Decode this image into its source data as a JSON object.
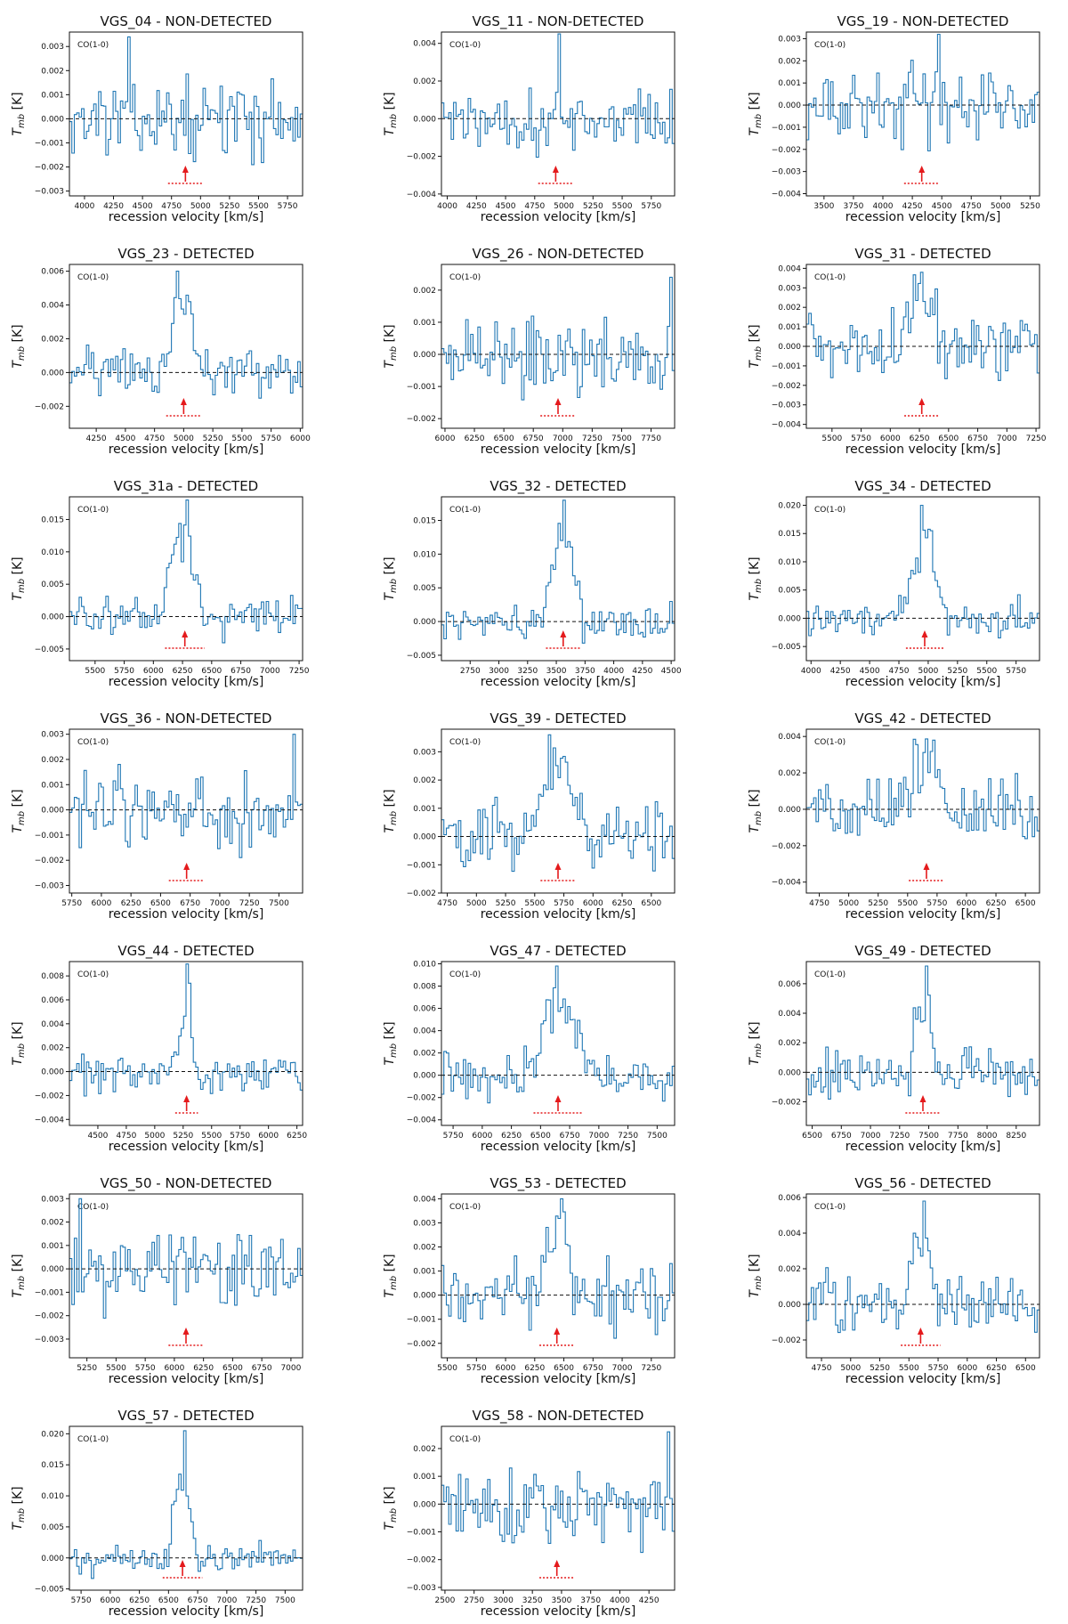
{
  "figure": {
    "ylabel_main": "T",
    "ylabel_sub": "mb",
    "ylabel_unit": " [K]"
  },
  "chart_data": [
    {
      "type": "line",
      "title": "VGS_04 - NON-DETECTED",
      "xlabel": "recession velocity [km/s]",
      "ylabel": "T_mb [K]",
      "annotation": "CO(1-0)",
      "xlim": [
        3870,
        5880
      ],
      "ylim": [
        -0.0032,
        0.0036
      ],
      "xticks": [
        4000,
        4250,
        4500,
        4750,
        5000,
        5250,
        5500,
        5750
      ],
      "yticks": [
        -0.003,
        -0.002,
        -0.001,
        0.0,
        0.001,
        0.002,
        0.003
      ],
      "ytick_labels": [
        "−0.003",
        "−0.002",
        "−0.001",
        "0.000",
        "0.001",
        "0.002",
        "0.003"
      ],
      "peak": 0.0034,
      "line_center": 4870,
      "line_width": 300,
      "noise": 0.0011,
      "baseline_x": 5000,
      "x_start": 4000,
      "arrow_v": 4870,
      "arrow_w": 300,
      "show_line": false
    },
    {
      "type": "line",
      "title": "VGS_11 - NON-DETECTED",
      "xlabel": "recession velocity [km/s]",
      "ylabel": "T_mb [K]",
      "annotation": "CO(1-0)",
      "xlim": [
        3950,
        5950
      ],
      "ylim": [
        -0.0041,
        0.0046
      ],
      "xticks": [
        4000,
        4250,
        4500,
        4750,
        5000,
        5250,
        5500,
        5750
      ],
      "yticks": [
        -0.004,
        -0.002,
        0.0,
        0.002,
        0.004
      ],
      "ytick_labels": [
        "−0.004",
        "−0.002",
        "0.000",
        "0.002",
        "0.004"
      ],
      "peak": 0.0045,
      "line_center": 4930,
      "line_width": 300,
      "noise": 0.0013,
      "baseline_x": 5000,
      "x_start": 4000,
      "arrow_v": 4930,
      "arrow_w": 300,
      "show_line": false
    },
    {
      "type": "line",
      "title": "VGS_19 - NON-DETECTED",
      "xlabel": "recession velocity [km/s]",
      "ylabel": "T_mb [K]",
      "annotation": "CO(1-0)",
      "xlim": [
        3350,
        5330
      ],
      "ylim": [
        -0.0041,
        0.0033
      ],
      "xticks": [
        3500,
        3750,
        4000,
        4250,
        4500,
        4750,
        5000,
        5250
      ],
      "yticks": [
        -0.004,
        -0.003,
        -0.002,
        -0.001,
        0.0,
        0.001,
        0.002,
        0.003
      ],
      "ytick_labels": [
        "−0.004",
        "−0.003",
        "−0.002",
        "−0.001",
        "0.000",
        "0.001",
        "0.002",
        "0.003"
      ],
      "peak": 0.0032,
      "line_center": 4330,
      "line_width": 300,
      "noise": 0.0012,
      "baseline_x": 5000,
      "x_start": 3500,
      "arrow_v": 4330,
      "arrow_w": 300,
      "show_line": false
    },
    {
      "type": "line",
      "title": "VGS_23 - DETECTED",
      "xlabel": "recession velocity [km/s]",
      "ylabel": "T_mb [K]",
      "annotation": "CO(1-0)",
      "xlim": [
        4020,
        6020
      ],
      "ylim": [
        -0.0033,
        0.0064
      ],
      "xticks": [
        4250,
        4500,
        4750,
        5000,
        5250,
        5500,
        5750,
        6000
      ],
      "yticks": [
        -0.002,
        0.0,
        0.002,
        0.004,
        0.006
      ],
      "ytick_labels": [
        "−0.002",
        "0.000",
        "0.002",
        "0.004",
        "0.006"
      ],
      "peak": 0.006,
      "line_center": 5000,
      "line_width": 300,
      "noise": 0.0011,
      "baseline_x": 5000,
      "x_start": 4250,
      "arrow_v": 5000,
      "arrow_w": 300,
      "show_line": true
    },
    {
      "type": "line",
      "title": "VGS_26 - NON-DETECTED",
      "xlabel": "recession velocity [km/s]",
      "ylabel": "T_mb [K]",
      "annotation": "CO(1-0)",
      "xlim": [
        5970,
        7950
      ],
      "ylim": [
        -0.0023,
        0.0028
      ],
      "xticks": [
        6000,
        6250,
        6500,
        6750,
        7000,
        7250,
        7500,
        7750
      ],
      "yticks": [
        -0.002,
        -0.001,
        0.0,
        0.001,
        0.002
      ],
      "ytick_labels": [
        "−0.002",
        "−0.001",
        "0.000",
        "0.001",
        "0.002"
      ],
      "peak": 0.0024,
      "line_center": 6960,
      "line_width": 300,
      "noise": 0.0009,
      "baseline_x": 5000,
      "x_start": 6000,
      "arrow_v": 6960,
      "arrow_w": 300,
      "show_line": false
    },
    {
      "type": "line",
      "title": "VGS_31 - DETECTED",
      "xlabel": "recession velocity [km/s]",
      "ylabel": "T_mb [K]",
      "annotation": "CO(1-0)",
      "xlim": [
        5280,
        7280
      ],
      "ylim": [
        -0.0042,
        0.0042
      ],
      "xticks": [
        5500,
        5750,
        6000,
        6250,
        6500,
        6750,
        7000,
        7250
      ],
      "yticks": [
        -0.004,
        -0.003,
        -0.002,
        -0.001,
        0.0,
        0.001,
        0.002,
        0.003,
        0.004
      ],
      "ytick_labels": [
        "−0.004",
        "−0.003",
        "−0.002",
        "−0.001",
        "0.000",
        "0.001",
        "0.002",
        "0.003",
        "0.004"
      ],
      "peak": 0.0038,
      "line_center": 6270,
      "line_width": 300,
      "noise": 0.0012,
      "baseline_x": 5000,
      "x_start": 5500,
      "arrow_v": 6270,
      "arrow_w": 300,
      "show_line": true
    },
    {
      "type": "line",
      "title": "VGS_31a - DETECTED",
      "xlabel": "recession velocity [km/s]",
      "ylabel": "T_mb [K]",
      "annotation": "CO(1-0)",
      "xlim": [
        5280,
        7280
      ],
      "ylim": [
        -0.0068,
        0.0185
      ],
      "xticks": [
        5500,
        5750,
        6000,
        6250,
        6500,
        6750,
        7000,
        7250
      ],
      "yticks": [
        -0.005,
        0.0,
        0.005,
        0.01,
        0.015
      ],
      "ytick_labels": [
        "−0.005",
        "0.000",
        "0.005",
        "0.010",
        "0.015"
      ],
      "peak": 0.018,
      "line_center": 6250,
      "line_width": 300,
      "noise": 0.0022,
      "baseline_x": 5000,
      "x_start": 5500,
      "arrow_v": 6270,
      "arrow_w": 340,
      "show_line": true
    },
    {
      "type": "line",
      "title": "VGS_32 - DETECTED",
      "xlabel": "recession velocity [km/s]",
      "ylabel": "T_mb [K]",
      "annotation": "CO(1-0)",
      "xlim": [
        2500,
        4530
      ],
      "ylim": [
        -0.0058,
        0.0185
      ],
      "xticks": [
        2750,
        3000,
        3250,
        3500,
        3750,
        4000,
        4250,
        4500
      ],
      "yticks": [
        -0.005,
        0.0,
        0.005,
        0.01,
        0.015
      ],
      "ytick_labels": [
        "−0.005",
        "0.000",
        "0.005",
        "0.010",
        "0.015"
      ],
      "peak": 0.018,
      "line_center": 3560,
      "line_width": 300,
      "noise": 0.002,
      "baseline_x": 5000,
      "x_start": 2750,
      "arrow_v": 3560,
      "arrow_w": 300,
      "show_line": true
    },
    {
      "type": "line",
      "title": "VGS_34 - DETECTED",
      "xlabel": "recession velocity [km/s]",
      "ylabel": "T_mb [K]",
      "annotation": "CO(1-0)",
      "xlim": [
        3960,
        5950
      ],
      "ylim": [
        -0.0075,
        0.0215
      ],
      "xticks": [
        4000,
        4250,
        4500,
        4750,
        5000,
        5250,
        5500,
        5750
      ],
      "yticks": [
        -0.005,
        0.0,
        0.005,
        0.01,
        0.015,
        0.02
      ],
      "ytick_labels": [
        "−0.005",
        "0.000",
        "0.005",
        "0.010",
        "0.015",
        "0.020"
      ],
      "peak": 0.02,
      "line_center": 4970,
      "line_width": 300,
      "noise": 0.0024,
      "baseline_x": 5000,
      "x_start": 4000,
      "arrow_v": 4970,
      "arrow_w": 320,
      "show_line": true
    },
    {
      "type": "line",
      "title": "VGS_36 - NON-DETECTED",
      "xlabel": "recession velocity [km/s]",
      "ylabel": "T_mb [K]",
      "annotation": "CO(1-0)",
      "xlim": [
        5730,
        7700
      ],
      "ylim": [
        -0.0033,
        0.0032
      ],
      "xticks": [
        5750,
        6000,
        6250,
        6500,
        6750,
        7000,
        7250,
        7500
      ],
      "yticks": [
        -0.003,
        -0.002,
        -0.001,
        0.0,
        0.001,
        0.002,
        0.003
      ],
      "ytick_labels": [
        "−0.003",
        "−0.002",
        "−0.001",
        "0.000",
        "0.001",
        "0.002",
        "0.003"
      ],
      "peak": 0.003,
      "line_center": 6720,
      "line_width": 300,
      "noise": 0.0011,
      "baseline_x": 5000,
      "x_start": 5750,
      "arrow_v": 6720,
      "arrow_w": 300,
      "show_line": false
    },
    {
      "type": "line",
      "title": "VGS_39 - DETECTED",
      "xlabel": "recession velocity [km/s]",
      "ylabel": "T_mb [K]",
      "annotation": "CO(1-0)",
      "xlim": [
        4700,
        6700
      ],
      "ylim": [
        -0.002,
        0.0038
      ],
      "xticks": [
        4750,
        5000,
        5250,
        5500,
        5750,
        6000,
        6250,
        6500
      ],
      "yticks": [
        -0.002,
        -0.001,
        0.0,
        0.001,
        0.002,
        0.003
      ],
      "ytick_labels": [
        "−0.002",
        "−0.001",
        "0.000",
        "0.001",
        "0.002",
        "0.003"
      ],
      "peak": 0.0036,
      "line_center": 5700,
      "line_width": 400,
      "noise": 0.0009,
      "baseline_x": 5000,
      "x_start": 4750,
      "arrow_v": 5700,
      "arrow_w": 300,
      "show_line": true
    },
    {
      "type": "line",
      "title": "VGS_42 - DETECTED",
      "xlabel": "recession velocity [km/s]",
      "ylabel": "T_mb [K]",
      "annotation": "CO(1-0)",
      "xlim": [
        4640,
        6620
      ],
      "ylim": [
        -0.0046,
        0.0044
      ],
      "xticks": [
        4750,
        5000,
        5250,
        5500,
        5750,
        6000,
        6250,
        6500
      ],
      "yticks": [
        -0.004,
        -0.002,
        0.0,
        0.002,
        0.004
      ],
      "ytick_labels": [
        "−0.004",
        "−0.002",
        "0.000",
        "0.002",
        "0.004"
      ],
      "peak": 0.0038,
      "line_center": 5660,
      "line_width": 300,
      "noise": 0.0014,
      "baseline_x": 5000,
      "x_start": 4750,
      "arrow_v": 5660,
      "arrow_w": 300,
      "show_line": true
    },
    {
      "type": "line",
      "title": "VGS_44 - DETECTED",
      "xlabel": "recession velocity [km/s]",
      "ylabel": "T_mb [K]",
      "annotation": "CO(1-0)",
      "xlim": [
        4250,
        6300
      ],
      "ylim": [
        -0.0045,
        0.0092
      ],
      "xticks": [
        4500,
        4750,
        5000,
        5250,
        5500,
        5750,
        6000,
        6250
      ],
      "yticks": [
        -0.004,
        -0.002,
        0.0,
        0.002,
        0.004,
        0.006,
        0.008
      ],
      "ytick_labels": [
        "−0.004",
        "−0.002",
        "0.000",
        "0.002",
        "0.004",
        "0.006",
        "0.008"
      ],
      "peak": 0.009,
      "line_center": 5280,
      "line_width": 150,
      "noise": 0.0014,
      "baseline_x": 5000,
      "x_start": 4500,
      "arrow_v": 5280,
      "arrow_w": 200,
      "show_line": true
    },
    {
      "type": "line",
      "title": "VGS_47 - DETECTED",
      "xlabel": "recession velocity [km/s]",
      "ylabel": "T_mb [K]",
      "annotation": "CO(1-0)",
      "xlim": [
        5650,
        7650
      ],
      "ylim": [
        -0.0045,
        0.0102
      ],
      "xticks": [
        5750,
        6000,
        6250,
        6500,
        6750,
        7000,
        7250,
        7500
      ],
      "yticks": [
        -0.004,
        -0.002,
        0.0,
        0.002,
        0.004,
        0.006,
        0.008,
        0.01
      ],
      "ytick_labels": [
        "−0.004",
        "−0.002",
        "0.000",
        "0.002",
        "0.004",
        "0.006",
        "0.008",
        "0.010"
      ],
      "peak": 0.0098,
      "line_center": 6650,
      "line_width": 400,
      "noise": 0.0015,
      "baseline_x": 5000,
      "x_start": 5750,
      "arrow_v": 6650,
      "arrow_w": 420,
      "show_line": true
    },
    {
      "type": "line",
      "title": "VGS_49 - DETECTED",
      "xlabel": "recession velocity [km/s]",
      "ylabel": "T_mb [K]",
      "annotation": "CO(1-0)",
      "xlim": [
        6450,
        8450
      ],
      "ylim": [
        -0.0036,
        0.0075
      ],
      "xticks": [
        6500,
        6750,
        7000,
        7250,
        7500,
        7750,
        8000,
        8250
      ],
      "yticks": [
        -0.002,
        0.0,
        0.002,
        0.004,
        0.006
      ],
      "ytick_labels": [
        "−0.002",
        "0.000",
        "0.002",
        "0.004",
        "0.006"
      ],
      "peak": 0.0072,
      "line_center": 7450,
      "line_width": 200,
      "noise": 0.0012,
      "baseline_x": 5000,
      "x_start": 6500,
      "arrow_v": 7450,
      "arrow_w": 300,
      "show_line": true
    },
    {
      "type": "line",
      "title": "VGS_50 - NON-DETECTED",
      "xlabel": "recession velocity [km/s]",
      "ylabel": "T_mb [K]",
      "annotation": "CO(1-0)",
      "xlim": [
        5100,
        7100
      ],
      "ylim": [
        -0.0038,
        0.0032
      ],
      "xticks": [
        5250,
        5500,
        5750,
        6000,
        6250,
        6500,
        6750,
        7000
      ],
      "yticks": [
        -0.003,
        -0.002,
        -0.001,
        0.0,
        0.001,
        0.002,
        0.003
      ],
      "ytick_labels": [
        "−0.003",
        "−0.002",
        "−0.001",
        "0.000",
        "0.001",
        "0.002",
        "0.003"
      ],
      "peak": 0.003,
      "line_center": 6100,
      "line_width": 300,
      "noise": 0.0012,
      "baseline_x": 5000,
      "x_start": 5250,
      "arrow_v": 6100,
      "arrow_w": 300,
      "show_line": false
    },
    {
      "type": "line",
      "title": "VGS_53 - DETECTED",
      "xlabel": "recession velocity [km/s]",
      "ylabel": "T_mb [K]",
      "annotation": "CO(1-0)",
      "xlim": [
        5450,
        7450
      ],
      "ylim": [
        -0.0026,
        0.0042
      ],
      "xticks": [
        5500,
        5750,
        6000,
        6250,
        6500,
        6750,
        7000,
        7250
      ],
      "yticks": [
        -0.002,
        -0.001,
        0.0,
        0.001,
        0.002,
        0.003,
        0.004
      ],
      "ytick_labels": [
        "−0.002",
        "−0.001",
        "0.000",
        "0.001",
        "0.002",
        "0.003",
        "0.004"
      ],
      "peak": 0.004,
      "line_center": 6440,
      "line_width": 300,
      "noise": 0.0011,
      "baseline_x": 5000,
      "x_start": 5500,
      "arrow_v": 6440,
      "arrow_w": 300,
      "show_line": true
    },
    {
      "type": "line",
      "title": "VGS_56 - DETECTED",
      "xlabel": "recession velocity [km/s]",
      "ylabel": "T_mb [K]",
      "annotation": "CO(1-0)",
      "xlim": [
        4620,
        6620
      ],
      "ylim": [
        -0.003,
        0.0062
      ],
      "xticks": [
        4750,
        5000,
        5250,
        5500,
        5750,
        6000,
        6250,
        6500
      ],
      "yticks": [
        -0.002,
        0.0,
        0.002,
        0.004,
        0.006
      ],
      "ytick_labels": [
        "−0.002",
        "0.000",
        "0.002",
        "0.004",
        "0.006"
      ],
      "peak": 0.0058,
      "line_center": 5600,
      "line_width": 250,
      "noise": 0.0011,
      "baseline_x": 5000,
      "x_start": 4750,
      "arrow_v": 5600,
      "arrow_w": 340,
      "show_line": true
    },
    {
      "type": "line",
      "title": "VGS_57 - DETECTED",
      "xlabel": "recession velocity [km/s]",
      "ylabel": "T_mb [K]",
      "annotation": "CO(1-0)",
      "xlim": [
        5650,
        7650
      ],
      "ylim": [
        -0.0052,
        0.0212
      ],
      "xticks": [
        5750,
        6000,
        6250,
        6500,
        6750,
        7000,
        7250,
        7500
      ],
      "yticks": [
        -0.005,
        0.0,
        0.005,
        0.01,
        0.015,
        0.02
      ],
      "ytick_labels": [
        "−0.005",
        "0.000",
        "0.005",
        "0.010",
        "0.015",
        "0.020"
      ],
      "peak": 0.0205,
      "line_center": 6620,
      "line_width": 200,
      "noise": 0.0018,
      "baseline_x": 5000,
      "x_start": 5750,
      "arrow_v": 6620,
      "arrow_w": 340,
      "show_line": true
    },
    {
      "type": "line",
      "title": "VGS_58 - NON-DETECTED",
      "xlabel": "recession velocity [km/s]",
      "ylabel": "T_mb [K]",
      "annotation": "CO(1-0)",
      "xlim": [
        2470,
        4470
      ],
      "ylim": [
        -0.0031,
        0.0028
      ],
      "xticks": [
        2500,
        2750,
        3000,
        3250,
        3500,
        3750,
        4000,
        4250
      ],
      "yticks": [
        -0.003,
        -0.002,
        -0.001,
        0.0,
        0.001,
        0.002
      ],
      "ytick_labels": [
        "−0.003",
        "−0.002",
        "−0.001",
        "0.000",
        "0.001",
        "0.002"
      ],
      "peak": 0.0026,
      "line_center": 3460,
      "line_width": 300,
      "noise": 0.001,
      "baseline_x": 5000,
      "x_start": 2500,
      "arrow_v": 3460,
      "arrow_w": 300,
      "show_line": false
    }
  ]
}
